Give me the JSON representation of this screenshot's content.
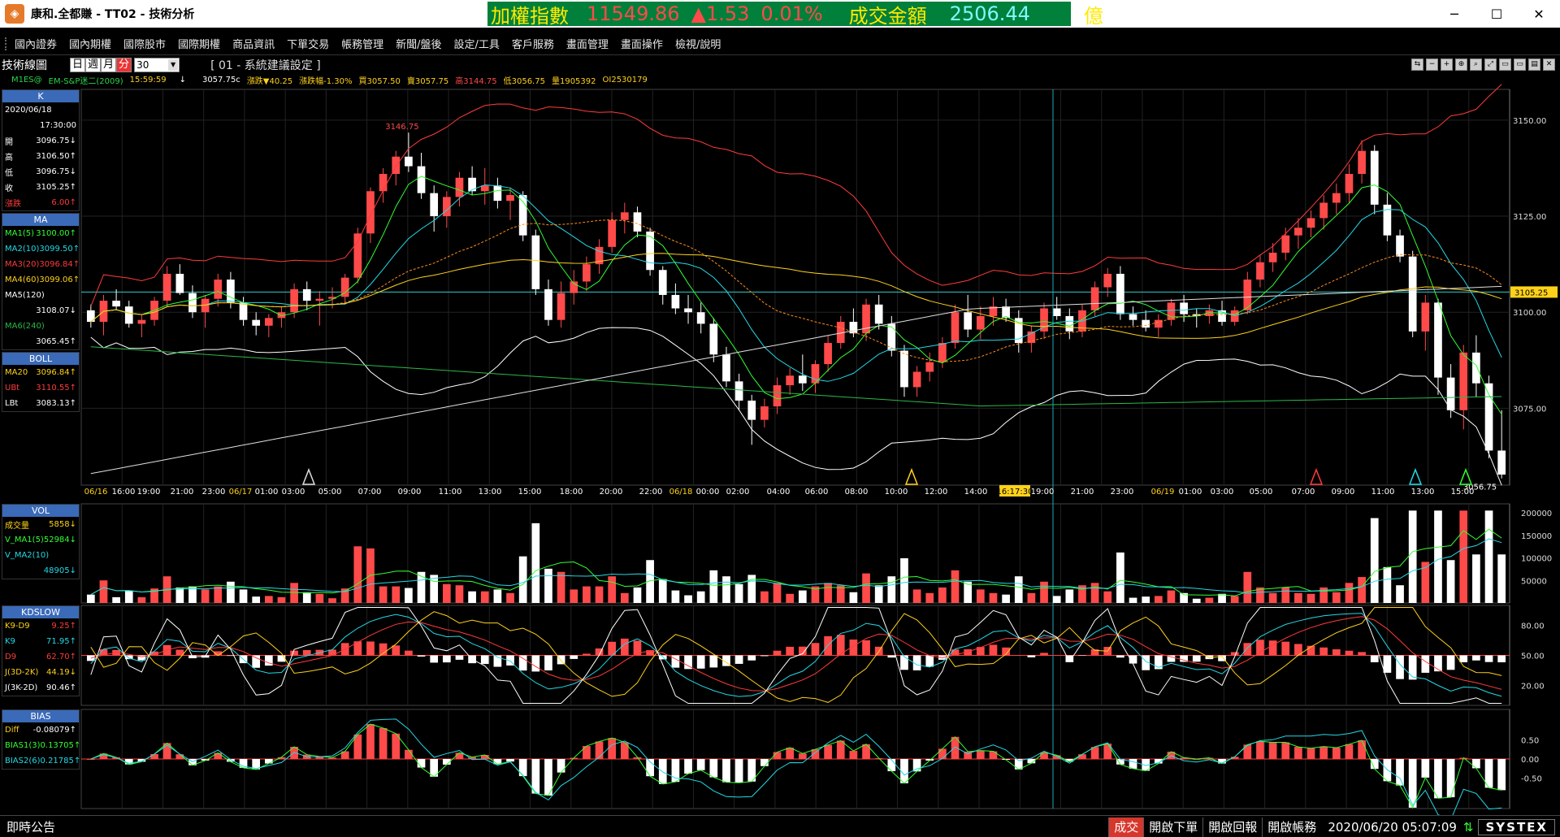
{
  "window": {
    "title": "康和.全都賺 - TT02 - 技術分析",
    "min": "─",
    "max": "☐",
    "close": "✕"
  },
  "ticker": {
    "label1": "加權指數",
    "index": "11549.86",
    "change": "▲1.53",
    "pct": "0.01%",
    "label2": "成交金額",
    "amount": "2506.44",
    "unit": "億"
  },
  "menu": [
    "國內證券",
    "國內期權",
    "國際股市",
    "國際期權",
    "商品資訊",
    "下單交易",
    "帳務管理",
    "新聞/盤後",
    "設定/工具",
    "客戶服務",
    "畫面管理",
    "畫面操作",
    "檢視/說明"
  ],
  "toolbar": {
    "name": "技術線圖",
    "periods": [
      "日",
      "週",
      "月",
      "分"
    ],
    "selected_period": "分",
    "interval": "30",
    "system": "[ 01 - 系統建議設定 ]",
    "icons": [
      "⇆",
      "−",
      "+",
      "⊕",
      "⌕",
      "⤢",
      "▭",
      "▭",
      "▤",
      "✕"
    ]
  },
  "quote": {
    "symbol": "M1ES@",
    "name": "EM-S&P迷二(2009)",
    "time": "15:59:59",
    "arrow": "↓",
    "last": "3057.75c",
    "chg": "漲跌▼40.25",
    "chgpct": "漲跌幅-1.30%",
    "bid": "買3057.50",
    "ask": "賣3057.75",
    "high": "高3144.75",
    "low": "低3056.75",
    "vol": "量1905392",
    "oi": "OI2530179"
  },
  "info": {
    "k": {
      "title": "K",
      "date": "2020/06/18",
      "time": "17:30:00",
      "rows": [
        [
          "開",
          "3096.75↓"
        ],
        [
          "高",
          "3106.50↑"
        ],
        [
          "低",
          "3096.75↓"
        ],
        [
          "收",
          "3105.25↑"
        ],
        [
          "漲跌",
          "6.00↑"
        ]
      ]
    },
    "ma": {
      "title": "MA",
      "rows": [
        {
          "label": "MA1(5)",
          "value": "3100.00↑",
          "color": "#31ff31"
        },
        {
          "label": "MA2(10)",
          "value": "3099.50↑",
          "color": "#23d9e6"
        },
        {
          "label": "MA3(20)",
          "value": "3096.84↑",
          "color": "#ff3b3b"
        },
        {
          "label": "MA4(60)",
          "value": "3099.06↑",
          "color": "#ffd21a"
        },
        {
          "label": "MA5(120)",
          "value": "3108.07↓",
          "color": "#ffffff"
        },
        {
          "label": "MA6(240)",
          "value": "3065.45↑",
          "color": "#2bb84a"
        }
      ]
    },
    "boll": {
      "title": "BOLL",
      "rows": [
        {
          "label": "MA20",
          "value": "3096.84↑",
          "color": "#ffd21a"
        },
        {
          "label": "UBt",
          "value": "3110.55↑",
          "color": "#ff3b3b"
        },
        {
          "label": "LBt",
          "value": "3083.13↑",
          "color": "#ffffff"
        }
      ]
    },
    "vol": {
      "title": "VOL",
      "rows": [
        {
          "label": "成交量",
          "value": "5858↓",
          "color": "#ffd21a"
        },
        {
          "label": "V_MA1(5)",
          "value": "52984↓",
          "color": "#31ff31"
        },
        {
          "label": "V_MA2(10)",
          "value": "48905↓",
          "color": "#23d9e6"
        }
      ]
    },
    "kd": {
      "title": "KDSLOW",
      "rows": [
        {
          "label": "K9-D9",
          "value": "9.25↑",
          "color": "#ffd21a"
        },
        {
          "label": "K9",
          "value": "71.95↑",
          "color": "#23d9e6"
        },
        {
          "label": "D9",
          "value": "62.70↑",
          "color": "#ff3b3b"
        },
        {
          "label": "J(3D-2K)",
          "value": "44.19↓",
          "color": "#ffd21a"
        },
        {
          "label": "J(3K-2D)",
          "value": "90.46↑",
          "color": "#ffffff"
        }
      ]
    },
    "bias": {
      "title": "BIAS",
      "rows": [
        {
          "label": "Diff",
          "value": "-0.08079↑",
          "color": "#ffd21a"
        },
        {
          "label": "BIAS1(3)",
          "value": "0.13705↑",
          "color": "#31ff31"
        },
        {
          "label": "BIAS2(6)",
          "value": "0.21785↑",
          "color": "#23d9e6"
        }
      ]
    }
  },
  "chart_data": {
    "type": "candlestick",
    "price_axis": {
      "ticks": [
        "3150.00",
        "3125.00",
        "3100.00",
        "3075.00"
      ],
      "ylim": [
        3055,
        3158
      ],
      "current": "3105.25"
    },
    "high_label": "3146.75",
    "low_label": "3056.75",
    "time_labels": [
      "06/16",
      "16:00",
      "19:00",
      "21:00",
      "23:00",
      "06/17",
      "01:00",
      "03:00",
      "05:00",
      "07:00",
      "09:00",
      "11:00",
      "13:00",
      "15:00",
      "18:00",
      "20:00",
      "22:00",
      "06/18",
      "00:00",
      "02:00",
      "04:00",
      "06:00",
      "08:00",
      "10:00",
      "12:00",
      "14:00",
      "16:17:30",
      "19:00",
      "21:00",
      "23:00",
      "06/19",
      "01:00",
      "03:00",
      "05:00",
      "07:00",
      "09:00",
      "11:00",
      "13:00",
      "15:00"
    ],
    "vol_axis": [
      "200000",
      "150000",
      "100000",
      "50000"
    ],
    "kd_axis": [
      "80.00",
      "50.00",
      "20.00"
    ],
    "bias_axis": [
      "0.50",
      "0.00",
      "-0.50"
    ],
    "candles": [
      [
        3100.5,
        3102.0,
        3096.0,
        3097.5
      ],
      [
        3097.5,
        3104.5,
        3094.0,
        3103.0
      ],
      [
        3103.0,
        3106.0,
        3100.5,
        3101.5
      ],
      [
        3101.5,
        3103.0,
        3096.0,
        3097.0
      ],
      [
        3097.0,
        3099.5,
        3093.5,
        3098.0
      ],
      [
        3098.0,
        3104.0,
        3096.5,
        3103.0
      ],
      [
        3103.0,
        3112.0,
        3101.5,
        3110.0
      ],
      [
        3110.0,
        3112.5,
        3104.5,
        3105.0
      ],
      [
        3105.0,
        3107.0,
        3098.5,
        3100.0
      ],
      [
        3100.0,
        3104.5,
        3096.0,
        3103.5
      ],
      [
        3103.5,
        3110.0,
        3101.5,
        3108.5
      ],
      [
        3108.5,
        3110.5,
        3101.0,
        3102.5
      ],
      [
        3102.5,
        3104.0,
        3096.5,
        3098.0
      ],
      [
        3098.0,
        3100.0,
        3094.0,
        3096.5
      ],
      [
        3096.5,
        3099.5,
        3093.5,
        3098.5
      ],
      [
        3098.5,
        3101.5,
        3096.0,
        3100.0
      ],
      [
        3100.0,
        3107.5,
        3098.5,
        3106.0
      ],
      [
        3106.0,
        3108.0,
        3100.5,
        3103.0
      ],
      [
        3103.0,
        3105.5,
        3096.5,
        3103.5
      ],
      [
        3103.5,
        3106.5,
        3101.0,
        3104.0
      ],
      [
        3104.0,
        3110.0,
        3102.5,
        3109.0
      ],
      [
        3109.0,
        3122.0,
        3107.5,
        3120.5
      ],
      [
        3120.5,
        3132.5,
        3118.0,
        3131.5
      ],
      [
        3131.5,
        3137.5,
        3128.5,
        3136.0
      ],
      [
        3136.0,
        3142.0,
        3133.0,
        3140.5
      ],
      [
        3140.5,
        3146.75,
        3136.5,
        3138.0
      ],
      [
        3138.0,
        3141.5,
        3129.5,
        3131.0
      ],
      [
        3131.0,
        3133.0,
        3121.0,
        3125.0
      ],
      [
        3125.0,
        3131.5,
        3122.0,
        3130.0
      ],
      [
        3130.0,
        3136.5,
        3127.5,
        3135.0
      ],
      [
        3135.0,
        3138.0,
        3130.5,
        3131.5
      ],
      [
        3131.5,
        3137.5,
        3128.0,
        3133.0
      ],
      [
        3133.0,
        3135.0,
        3127.0,
        3129.0
      ],
      [
        3129.0,
        3132.5,
        3124.0,
        3130.5
      ],
      [
        3130.5,
        3131.5,
        3118.5,
        3120.0
      ],
      [
        3120.0,
        3121.5,
        3104.5,
        3106.0
      ],
      [
        3106.0,
        3108.5,
        3096.5,
        3098.0
      ],
      [
        3098.0,
        3108.0,
        3096.0,
        3105.0
      ],
      [
        3105.0,
        3111.0,
        3102.0,
        3108.0
      ],
      [
        3108.0,
        3114.5,
        3105.5,
        3112.5
      ],
      [
        3112.5,
        3119.0,
        3110.0,
        3117.0
      ],
      [
        3117.0,
        3126.0,
        3115.5,
        3124.0
      ],
      [
        3124.0,
        3128.5,
        3120.5,
        3126.0
      ],
      [
        3126.0,
        3127.5,
        3119.5,
        3121.0
      ],
      [
        3121.0,
        3122.0,
        3109.5,
        3111.0
      ],
      [
        3111.0,
        3112.0,
        3102.0,
        3104.5
      ],
      [
        3104.5,
        3107.5,
        3099.5,
        3101.0
      ],
      [
        3101.0,
        3104.5,
        3097.0,
        3100.0
      ],
      [
        3100.0,
        3102.5,
        3094.5,
        3097.0
      ],
      [
        3097.0,
        3098.5,
        3087.0,
        3089.0
      ],
      [
        3089.0,
        3091.0,
        3080.5,
        3082.0
      ],
      [
        3082.0,
        3084.0,
        3074.5,
        3077.0
      ],
      [
        3077.0,
        3078.5,
        3065.5,
        3072.0
      ],
      [
        3072.0,
        3077.5,
        3070.0,
        3075.5
      ],
      [
        3075.5,
        3083.0,
        3073.5,
        3081.0
      ],
      [
        3081.0,
        3085.5,
        3078.5,
        3083.5
      ],
      [
        3083.5,
        3089.0,
        3079.5,
        3081.5
      ],
      [
        3081.5,
        3087.5,
        3079.0,
        3086.5
      ],
      [
        3086.5,
        3094.0,
        3084.5,
        3092.0
      ],
      [
        3092.0,
        3099.0,
        3090.5,
        3097.5
      ],
      [
        3097.5,
        3101.0,
        3093.5,
        3094.5
      ],
      [
        3094.5,
        3103.5,
        3092.5,
        3102.0
      ],
      [
        3102.0,
        3104.5,
        3095.5,
        3097.0
      ],
      [
        3097.0,
        3099.0,
        3088.5,
        3090.0
      ],
      [
        3090.0,
        3091.5,
        3078.0,
        3080.5
      ],
      [
        3080.5,
        3086.0,
        3078.0,
        3084.5
      ],
      [
        3084.5,
        3089.5,
        3082.0,
        3087.0
      ],
      [
        3087.0,
        3093.5,
        3085.5,
        3092.0
      ],
      [
        3092.0,
        3102.0,
        3090.5,
        3100.0
      ],
      [
        3100.0,
        3104.5,
        3093.5,
        3095.5
      ],
      [
        3095.5,
        3101.5,
        3093.0,
        3099.0
      ],
      [
        3099.0,
        3104.0,
        3096.5,
        3101.5
      ],
      [
        3101.5,
        3103.5,
        3097.5,
        3098.5
      ],
      [
        3098.5,
        3100.5,
        3089.5,
        3092.0
      ],
      [
        3092.0,
        3096.5,
        3089.5,
        3095.0
      ],
      [
        3095.0,
        3102.5,
        3093.0,
        3101.0
      ],
      [
        3101.0,
        3104.0,
        3098.0,
        3099.0
      ],
      [
        3099.0,
        3101.0,
        3093.0,
        3095.0
      ],
      [
        3095.0,
        3102.0,
        3093.5,
        3100.5
      ],
      [
        3100.5,
        3108.0,
        3099.0,
        3106.5
      ],
      [
        3106.5,
        3111.5,
        3104.0,
        3110.0
      ],
      [
        3110.0,
        3112.0,
        3098.0,
        3099.5
      ],
      [
        3099.5,
        3101.5,
        3096.5,
        3098.0
      ],
      [
        3098.0,
        3100.5,
        3095.0,
        3096.0
      ],
      [
        3096.0,
        3099.5,
        3093.5,
        3098.0
      ],
      [
        3098.0,
        3103.5,
        3096.5,
        3102.5
      ],
      [
        3102.5,
        3104.5,
        3097.5,
        3099.5
      ],
      [
        3099.5,
        3101.0,
        3096.0,
        3099.0
      ],
      [
        3099.0,
        3102.0,
        3097.0,
        3100.5
      ],
      [
        3100.5,
        3103.0,
        3096.5,
        3097.5
      ],
      [
        3097.5,
        3101.5,
        3096.5,
        3100.5
      ],
      [
        3100.5,
        3110.5,
        3099.5,
        3108.5
      ],
      [
        3108.5,
        3115.0,
        3106.5,
        3113.0
      ],
      [
        3113.0,
        3118.0,
        3110.5,
        3115.5
      ],
      [
        3115.5,
        3122.0,
        3113.5,
        3120.0
      ],
      [
        3120.0,
        3124.5,
        3116.5,
        3122.0
      ],
      [
        3122.0,
        3126.5,
        3119.5,
        3124.5
      ],
      [
        3124.5,
        3130.5,
        3121.5,
        3128.5
      ],
      [
        3128.5,
        3133.5,
        3125.5,
        3131.0
      ],
      [
        3131.0,
        3138.5,
        3128.5,
        3136.0
      ],
      [
        3136.0,
        3144.75,
        3133.5,
        3142.0
      ],
      [
        3142.0,
        3143.5,
        3125.5,
        3128.0
      ],
      [
        3128.0,
        3131.0,
        3118.5,
        3120.0
      ],
      [
        3120.0,
        3121.5,
        3113.0,
        3114.5
      ],
      [
        3114.5,
        3116.0,
        3093.5,
        3095.0
      ],
      [
        3095.0,
        3104.5,
        3090.0,
        3102.5
      ],
      [
        3102.5,
        3103.5,
        3078.5,
        3083.0
      ],
      [
        3083.0,
        3086.5,
        3072.5,
        3074.5
      ],
      [
        3074.5,
        3091.5,
        3069.5,
        3089.5
      ],
      [
        3089.5,
        3094.0,
        3078.0,
        3081.5
      ],
      [
        3081.5,
        3083.5,
        3062.0,
        3064.0
      ],
      [
        3064.0,
        3074.5,
        3056.75,
        3057.75
      ]
    ]
  },
  "status": {
    "news": "即時公告",
    "buttons": [
      "成交",
      "開啟下單",
      "開啟回報",
      "開啟帳務"
    ],
    "datetime": "2020/06/20 05:07:09",
    "brand": "SYSTEX"
  }
}
